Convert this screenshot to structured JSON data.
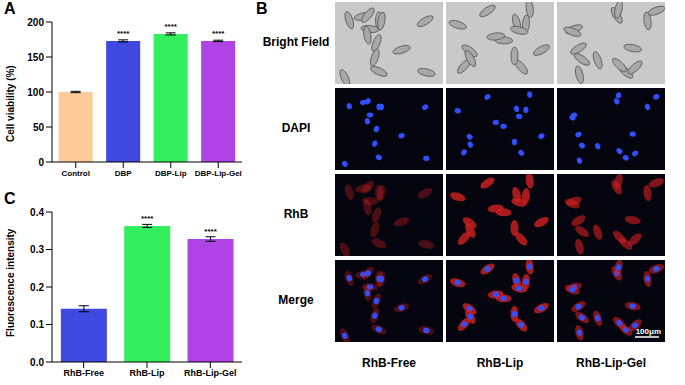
{
  "chart_data": [
    {
      "type": "bar",
      "title": "A",
      "y_label": "Cell viability (%)",
      "categories": [
        "Control",
        "DBP",
        "DBP-Lip",
        "DBP-Lip-Gel"
      ],
      "values": [
        100,
        173,
        183,
        173
      ],
      "errors": [
        1,
        1.5,
        1.5,
        1
      ],
      "colors": [
        "#fdcb9a",
        "#3f48e0",
        "#33ee5e",
        "#b043e6"
      ],
      "ylim": [
        0,
        200
      ],
      "yticks": [
        0,
        50,
        100,
        150,
        200
      ],
      "grid": false,
      "annotations": [
        {
          "category": "DBP",
          "text": "****"
        },
        {
          "category": "DBP-Lip",
          "text": "****"
        },
        {
          "category": "DBP-Lip-Gel",
          "text": "****"
        }
      ]
    },
    {
      "type": "bar",
      "title": "C",
      "y_label": "Fluorescence intensity",
      "categories": [
        "RhB-Free",
        "RhB-Lip",
        "RhB-Lip-Gel"
      ],
      "values": [
        0.142,
        0.363,
        0.328
      ],
      "errors": [
        0.008,
        0.004,
        0.006
      ],
      "colors": [
        "#3f48e0",
        "#33ee5e",
        "#b043e6"
      ],
      "ylim": [
        0,
        0.4
      ],
      "yticks": [
        {
          "value": 0,
          "label": "0.0"
        },
        0.1,
        0.2,
        0.3,
        0.4
      ],
      "grid": false,
      "annotations": [
        {
          "category": "RhB-Lip",
          "text": "****"
        },
        {
          "category": "RhB-Lip-Gel",
          "text": "****"
        }
      ]
    }
  ],
  "panel_b": {
    "title": "B",
    "rows": [
      "Bright Field",
      "DAPI",
      "RhB",
      "Merge"
    ],
    "columns": [
      "RhB-Free",
      "RhB-Lip",
      "RhB-Lip-Gel"
    ],
    "scale_bar": "100μm"
  }
}
